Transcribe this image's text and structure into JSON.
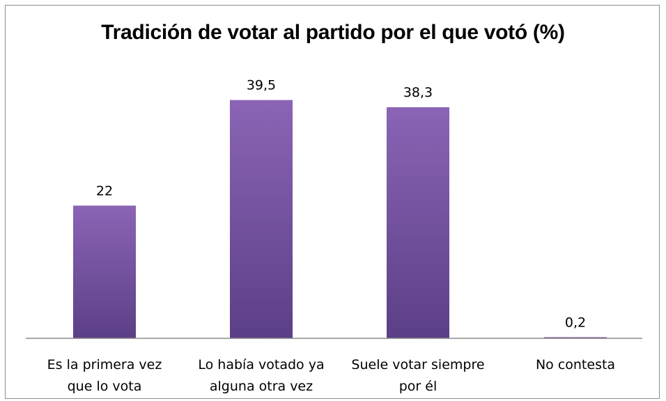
{
  "chart_data": {
    "type": "bar",
    "title": "Tradición de votar al partido por el que votó (%)",
    "categories": [
      [
        "Es la primera vez",
        "que lo vota"
      ],
      [
        "Lo había votado ya",
        "alguna otra vez"
      ],
      [
        "Suele votar siempre",
        "por él"
      ],
      [
        "No contesta"
      ]
    ],
    "values": [
      22,
      39.5,
      38.3,
      0.2
    ],
    "data_labels": [
      "22",
      "39,5",
      "38,3",
      "0,2"
    ],
    "ylim": [
      0,
      45
    ],
    "grid": false,
    "legend": "none",
    "bar_color_top": "#8b64b5",
    "bar_color_bottom": "#5b3f86"
  }
}
